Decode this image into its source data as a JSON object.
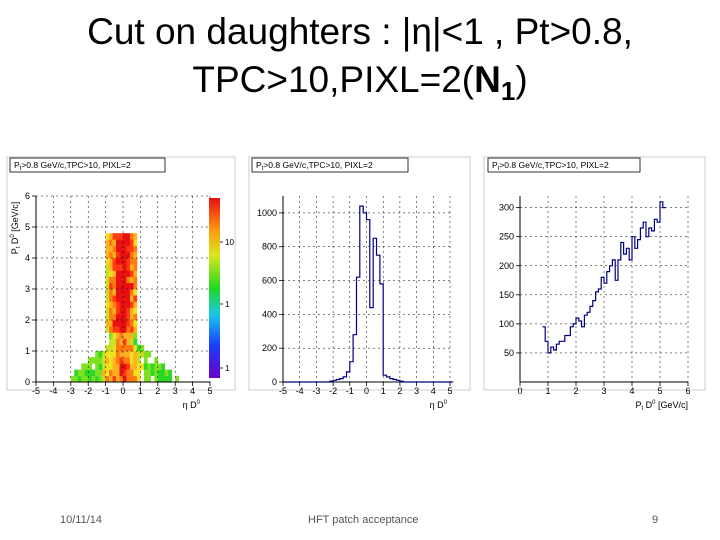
{
  "slide": {
    "title_line1_pre": "Cut on daughters : |",
    "title_eta": "η",
    "title_line1_post": "|<1 , Pt>0.8,",
    "title_line2_pre": "TPC>10,PIXL=2(",
    "title_n": "N",
    "title_n_sub": "1",
    "title_line2_post": ")",
    "footer_date": "10/11/14",
    "footer_center": "HFT patch acceptance",
    "footer_page": "9"
  },
  "chart_data": [
    {
      "type": "heatmap",
      "title": "Pt>0.8 GeV/c,TPC>10, PIXL=2",
      "xlabel": "η D0",
      "ylabel": "Pt D0 [GeV/c]",
      "xlim": [
        -5,
        5
      ],
      "ylim": [
        0,
        6
      ],
      "x_ticks": [
        "-5",
        "-4",
        "-3",
        "-2",
        "-1",
        "0",
        "1",
        "2",
        "3",
        "4",
        "5"
      ],
      "y_ticks": [
        "0",
        "1",
        "2",
        "3",
        "4",
        "5",
        "6"
      ],
      "colorbar_ticks": [
        "10",
        "1",
        "1"
      ],
      "grid": true,
      "description_cells": "density concentrated for |eta|<1, broader at low Pt"
    },
    {
      "type": "line",
      "title": "Pt>0.8 GeV/c,TPC>10, PIXL=2",
      "xlabel": "η D0",
      "xlim": [
        -5,
        5
      ],
      "ylim": [
        0,
        1100
      ],
      "x_ticks": [
        "-5",
        "-4",
        "-3",
        "-2",
        "-1",
        "0",
        "1",
        "2",
        "3",
        "4",
        "5"
      ],
      "y_ticks": [
        "0",
        "200",
        "400",
        "600",
        "800",
        "1000"
      ],
      "grid": true,
      "x": [
        -5.0,
        -4.8,
        -4.6,
        -4.4,
        -4.2,
        -4.0,
        -3.8,
        -3.6,
        -3.4,
        -3.2,
        -3.0,
        -2.8,
        -2.6,
        -2.4,
        -2.2,
        -2.0,
        -1.8,
        -1.6,
        -1.4,
        -1.2,
        -1.0,
        -0.8,
        -0.6,
        -0.4,
        -0.2,
        0.0,
        0.2,
        0.4,
        0.6,
        0.8,
        1.0,
        1.2,
        1.4,
        1.6,
        1.8,
        2.0,
        2.2,
        2.4,
        2.6,
        2.8,
        3.0,
        3.2,
        3.4,
        3.6,
        3.8,
        4.0,
        4.2,
        4.4,
        4.6,
        4.8,
        5.0
      ],
      "values": [
        0,
        0,
        0,
        0,
        0,
        0,
        0,
        0,
        0,
        0,
        0,
        0,
        0,
        0,
        5,
        10,
        15,
        20,
        30,
        60,
        120,
        280,
        620,
        1040,
        1000,
        960,
        440,
        850,
        750,
        580,
        40,
        30,
        20,
        15,
        10,
        5,
        0,
        0,
        0,
        0,
        0,
        0,
        0,
        0,
        0,
        0,
        0,
        0,
        0,
        0,
        0
      ]
    },
    {
      "type": "line",
      "title": "Pt>0.8 GeV/c,TPC>10, PIXL=2",
      "xlabel": "Pt D0 [GeV/c]",
      "xlim": [
        0,
        6
      ],
      "ylim": [
        0,
        320
      ],
      "x_ticks": [
        "0",
        "1",
        "2",
        "3",
        "4",
        "5",
        "6"
      ],
      "y_ticks": [
        "50",
        "100",
        "150",
        "200",
        "250",
        "300"
      ],
      "grid": true,
      "x": [
        0.8,
        0.9,
        1.0,
        1.1,
        1.2,
        1.3,
        1.4,
        1.5,
        1.6,
        1.7,
        1.8,
        1.9,
        2.0,
        2.1,
        2.2,
        2.3,
        2.4,
        2.5,
        2.6,
        2.7,
        2.8,
        2.9,
        3.0,
        3.1,
        3.2,
        3.3,
        3.4,
        3.5,
        3.6,
        3.7,
        3.8,
        3.9,
        4.0,
        4.1,
        4.2,
        4.3,
        4.4,
        4.5,
        4.6,
        4.7,
        4.8,
        4.9,
        5.0,
        5.1
      ],
      "values": [
        95,
        70,
        50,
        60,
        55,
        65,
        70,
        70,
        80,
        80,
        95,
        100,
        110,
        105,
        95,
        115,
        120,
        130,
        140,
        155,
        160,
        180,
        170,
        190,
        200,
        210,
        175,
        210,
        240,
        220,
        230,
        210,
        250,
        230,
        245,
        265,
        275,
        250,
        265,
        260,
        280,
        275,
        310,
        300
      ]
    }
  ]
}
